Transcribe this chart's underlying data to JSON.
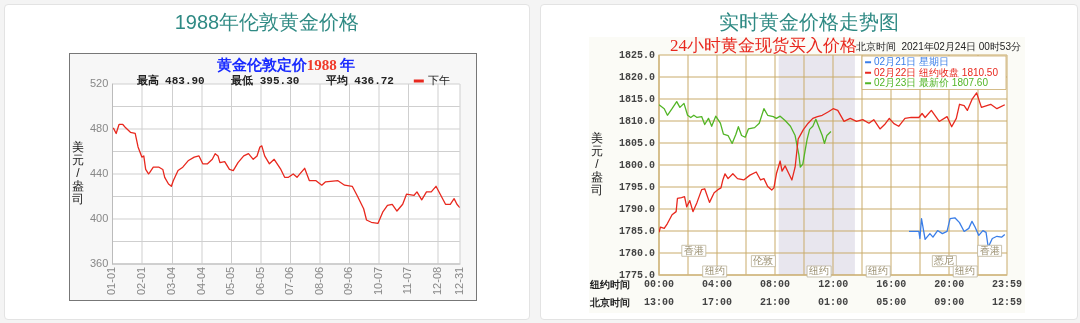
{
  "chart_data": [
    {
      "type": "line",
      "title": "1988年伦敦黄金价格",
      "subtitle": "黄金伦敦定价1988 年",
      "ylabel": "美元/盎司",
      "annotations": [
        "最高 483.90    最低 395.30    平均 436.72"
      ],
      "xlim": [
        "--01-01",
        "--12-31"
      ],
      "xticks": [
        {
          "value": "--01-01",
          "label": "01-01"
        },
        {
          "value": "--02-01",
          "label": "02-01"
        },
        {
          "value": "--03-04",
          "label": "03-04"
        },
        {
          "value": "--04-04",
          "label": "04-04"
        },
        {
          "value": "--05-05",
          "label": "05-05"
        },
        {
          "value": "--06-05",
          "label": "06-05"
        },
        {
          "value": "--07-06",
          "label": "07-06"
        },
        {
          "value": "--08-06",
          "label": "08-06"
        },
        {
          "value": "--09-06",
          "label": "09-06"
        },
        {
          "value": "--10-07",
          "label": "10-07"
        },
        {
          "value": "--11-07",
          "label": "11-07"
        },
        {
          "value": "--12-08",
          "label": "12-08"
        },
        {
          "value": "--12-31",
          "label": "12-31"
        }
      ],
      "ylim": [
        360,
        520
      ],
      "yticks": [
        360,
        {
          "value": 380,
          "label": null
        },
        400,
        {
          "value": 420,
          "label": null
        },
        440,
        {
          "value": 460,
          "label": null
        },
        480,
        {
          "value": 500,
          "label": null
        },
        520
      ],
      "grid": true,
      "legend": "top right",
      "marker": "none",
      "series": [
        {
          "name": "下午",
          "color": "#e8281e",
          "x": [
            "--01-02",
            "--01-05",
            "--01-08",
            "--01-12",
            "--01-15",
            "--01-20",
            "--01-25",
            "--01-28",
            "--02-01",
            "--02-03",
            "--02-05",
            "--02-08",
            "--02-09",
            "--02-13",
            "--02-19",
            "--02-23",
            "--02-25",
            "--02-29",
            "--03-03",
            "--03-05",
            "--03-10",
            "--03-15",
            "--03-21",
            "--03-27",
            "--04-01",
            "--04-05",
            "--04-10",
            "--04-15",
            "--04-18",
            "--04-21",
            "--04-23",
            "--04-28",
            "--05-03",
            "--05-07",
            "--05-12",
            "--05-18",
            "--05-23",
            "--05-28",
            "--06-01",
            "--06-04",
            "--06-06",
            "--06-09",
            "--06-14",
            "--06-19",
            "--06-26",
            "--06-30",
            "--07-04",
            "--07-09",
            "--07-13",
            "--07-16",
            "--07-21",
            "--07-26",
            "--08-02",
            "--08-08",
            "--08-12",
            "--08-25",
            "--09-01",
            "--09-09",
            "--09-14",
            "--09-21",
            "--09-24",
            "--09-29",
            "--10-06",
            "--10-11",
            "--10-16",
            "--10-21",
            "--10-26",
            "--11-01",
            "--11-05",
            "--11-13",
            "--11-16",
            "--11-21",
            "--11-26",
            "--12-01",
            "--12-06",
            "--12-11",
            "--12-16",
            "--12-21",
            "--12-25",
            "--12-28",
            "--12-31"
          ],
          "values": [
            481,
            476,
            484,
            484,
            481,
            477,
            476,
            464,
            455,
            456,
            444,
            440,
            441,
            446,
            446,
            444,
            437,
            431,
            429,
            434,
            443,
            446,
            452,
            455,
            456,
            449,
            449,
            453,
            458,
            456,
            450,
            451,
            444,
            443,
            450,
            456,
            458,
            453,
            456,
            464,
            465,
            456,
            449,
            453,
            444,
            437,
            437,
            440,
            437,
            440,
            445,
            434,
            434,
            430,
            433,
            434,
            430,
            429,
            421,
            409,
            399,
            397,
            396,
            406,
            412,
            413,
            407,
            413,
            422,
            421,
            424,
            417,
            424,
            424,
            429,
            421,
            413,
            413,
            418,
            413,
            410
          ]
        }
      ]
    },
    {
      "type": "line",
      "title": "实时黄金价格走势图",
      "subtitle": "24小时黄金现货买入价格",
      "ylabel": "美元/盎司",
      "xlabel": "纽约时间",
      "x2label": "北京时间",
      "annotations": [
        "北京时间  2021年02月24日 00时53分",
        "香港",
        "伦敦",
        "纽约",
        "纽约",
        "纽约",
        "悉尼",
        "香港",
        "纽约"
      ],
      "xlim": [
        0,
        23.983
      ],
      "xticks": [
        {
          "value": 0,
          "label": "00:00"
        },
        {
          "value": 2,
          "label": null
        },
        {
          "value": 4,
          "label": "04:00"
        },
        {
          "value": 6,
          "label": null
        },
        {
          "value": 8,
          "label": "08:00"
        },
        {
          "value": 10,
          "label": null
        },
        {
          "value": 12,
          "label": "12:00"
        },
        {
          "value": 14,
          "label": null
        },
        {
          "value": 16,
          "label": "16:00"
        },
        {
          "value": 18,
          "label": null
        },
        {
          "value": 20,
          "label": "20:00"
        },
        {
          "value": 22,
          "label": null
        },
        {
          "value": 23.983,
          "label": "23:59"
        }
      ],
      "x2lim": [
        "2021-02-23T13:00",
        "2021-02-24T12:59"
      ],
      "x2ticks": [
        {
          "value": "2021-02-23T13:00",
          "label": "13:00"
        },
        {
          "value": "2021-02-23T17:00",
          "label": "17:00"
        },
        {
          "value": "2021-02-23T21:00",
          "label": "21:00"
        },
        {
          "value": "2021-02-24T01:00",
          "label": "01:00"
        },
        {
          "value": "2021-02-24T05:00",
          "label": "05:00"
        },
        {
          "value": "2021-02-24T09:00",
          "label": "09:00"
        },
        {
          "value": "2021-02-24T12:59",
          "label": "12:59"
        }
      ],
      "ylim": [
        1775,
        1825
      ],
      "yticks": [
        {
          "value": 1775,
          "label": "1775.0"
        },
        {
          "value": 1780,
          "label": "1780.0"
        },
        {
          "value": 1785,
          "label": "1785.0"
        },
        {
          "value": 1790,
          "label": "1790.0"
        },
        {
          "value": 1795,
          "label": "1795.0"
        },
        {
          "value": 1800,
          "label": "1800.0"
        },
        {
          "value": 1805,
          "label": "1805.0"
        },
        {
          "value": 1810,
          "label": "1810.0"
        },
        {
          "value": 1815,
          "label": "1815.0"
        },
        {
          "value": 1820,
          "label": "1820.0"
        },
        {
          "value": 1825,
          "label": "1825.0"
        }
      ],
      "bands": [
        {
          "axis": "x",
          "from": 8.25,
          "to": 13.5,
          "color": "#e8e6ee"
        }
      ],
      "grid": true,
      "legend": "top right",
      "marker": "none",
      "series": [
        {
          "name": "02月21日 星期日",
          "color": "#3a7ee8",
          "x": [
            17.23,
            17.91,
            17.98,
            18.09,
            18.34,
            18.67,
            18.88,
            19.2,
            19.53,
            19.85,
            20.06,
            20.39,
            20.71,
            21.03,
            21.35,
            21.57,
            21.78,
            22.04,
            22.32,
            22.54,
            22.69,
            22.97,
            23.29,
            23.61,
            23.83
          ],
          "values": [
            1784.9,
            1784.9,
            1783.3,
            1787.8,
            1783.1,
            1784.4,
            1783.6,
            1785.1,
            1784.4,
            1784.9,
            1787.8,
            1788,
            1786.9,
            1784.9,
            1785.6,
            1787.2,
            1785.9,
            1784,
            1785.1,
            1784.7,
            1781.3,
            1783.3,
            1783.8,
            1783.6,
            1784.2
          ]
        },
        {
          "name": "02月22日 纽约收盘 1810.50",
          "color": "#e8281e",
          "x": [
            0,
            0.1,
            0.36,
            0.58,
            0.9,
            1.18,
            1.27,
            1.55,
            1.76,
            1.91,
            2.12,
            2.34,
            2.62,
            2.94,
            3.15,
            3.48,
            3.8,
            4.06,
            4.27,
            4.4,
            4.55,
            4.76,
            5.09,
            5.41,
            5.84,
            6.27,
            6.7,
            7,
            7.23,
            7.49,
            7.77,
            7.92,
            8.09,
            8.35,
            8.48,
            8.69,
            8.95,
            9.16,
            9.38,
            9.59,
            9.74,
            9.96,
            10.28,
            10.6,
            10.92,
            11.25,
            11.68,
            12,
            12.32,
            12.75,
            13.18,
            13.61,
            14.04,
            14.47,
            14.8,
            15.23,
            15.55,
            15.87,
            16.19,
            16.52,
            16.95,
            17.38,
            17.91,
            18.13,
            18.34,
            18.77,
            19.31,
            19.85,
            20.17,
            20.49,
            20.71,
            21.03,
            21.25,
            21.57,
            21.89,
            22.22,
            22.86,
            23.29,
            23.83
          ],
          "values": [
            1784.7,
            1785.9,
            1785.6,
            1786.7,
            1788.7,
            1789.4,
            1792.4,
            1792.6,
            1792.8,
            1790.5,
            1791.9,
            1789.4,
            1791.5,
            1794.4,
            1794.6,
            1791.5,
            1793.7,
            1794.4,
            1794.8,
            1796.6,
            1798,
            1796.9,
            1798,
            1796.9,
            1796.6,
            1797.7,
            1798.4,
            1796.6,
            1796.9,
            1795.1,
            1794.3,
            1794.8,
            1798,
            1800.9,
            1798.6,
            1799.8,
            1798,
            1796.6,
            1799.5,
            1805.9,
            1806.8,
            1808.1,
            1809.5,
            1810.6,
            1811,
            1811.3,
            1812.1,
            1812.8,
            1812.4,
            1809.9,
            1810.6,
            1809.9,
            1810.3,
            1809.5,
            1810.3,
            1808.2,
            1809.2,
            1810.6,
            1809.4,
            1808.8,
            1810.6,
            1810.8,
            1810.8,
            1811.7,
            1810.8,
            1812.4,
            1809.9,
            1811,
            1808.7,
            1810.6,
            1813.8,
            1813.5,
            1812.4,
            1814.9,
            1816.4,
            1813.1,
            1813.8,
            1812.8,
            1813.7
          ]
        },
        {
          "name": "02月23日 最新价 1807.60",
          "color": "#52b526",
          "x": [
            0,
            0.36,
            0.58,
            0.9,
            1.22,
            1.44,
            1.72,
            1.97,
            2.19,
            2.4,
            2.62,
            2.94,
            3.15,
            3.41,
            3.63,
            3.91,
            4.23,
            4.44,
            4.76,
            5.04,
            5.3,
            5.47,
            5.69,
            5.94,
            6.16,
            6.59,
            6.91,
            7.23,
            7.49,
            7.88,
            8.09,
            8.35,
            8.69,
            9.06,
            9.38,
            9.64,
            9.74,
            9.91,
            10.06,
            10.21,
            10.38,
            10.6,
            10.81,
            11.03,
            11.25,
            11.4,
            11.57,
            11.85
          ],
          "values": [
            1813.7,
            1812.8,
            1811.3,
            1812.8,
            1814.4,
            1813.1,
            1814,
            1811.3,
            1810.8,
            1811.3,
            1810.8,
            1811,
            1809.2,
            1810.6,
            1808.8,
            1811.1,
            1809.5,
            1807,
            1806.7,
            1804.9,
            1807,
            1808.7,
            1806.7,
            1806.3,
            1808.2,
            1808.5,
            1809.5,
            1812.8,
            1811.3,
            1811,
            1810.6,
            1811.1,
            1810.1,
            1808.8,
            1806.7,
            1802.3,
            1799.5,
            1800.2,
            1803.1,
            1805.9,
            1808.1,
            1808.8,
            1810.4,
            1808.5,
            1806.7,
            1804.9,
            1806.7,
            1807.6
          ]
        }
      ]
    }
  ]
}
